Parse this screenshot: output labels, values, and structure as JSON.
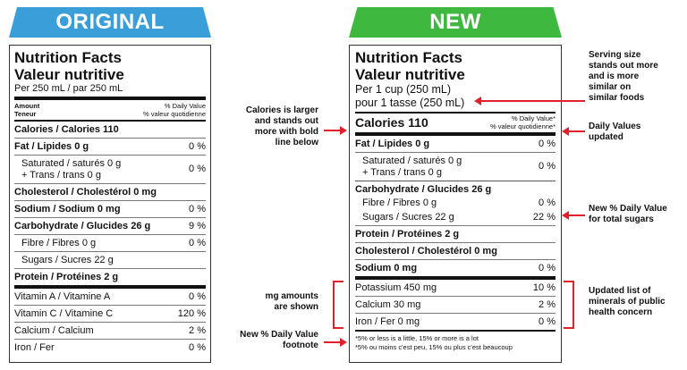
{
  "banners": {
    "original": "ORIGINAL",
    "new": "NEW"
  },
  "original": {
    "title1": "Nutrition Facts",
    "title2": "Valeur nutritive",
    "serving": "Per 250 mL  / par 250 mL",
    "hdr_left1": "Amount",
    "hdr_left2": "Teneur",
    "hdr_right1": "% Daily Value",
    "hdr_right2": "% valeur quotidienne",
    "rows": [
      {
        "label": "Calories / Calories 110",
        "dv": ""
      },
      {
        "label": "Fat / Lipides 0 g",
        "dv": "0 %"
      },
      {
        "label": "Saturated / saturés 0 g",
        "label2": "+ Trans / trans 0 g",
        "dv": "0 %"
      },
      {
        "label": "Cholesterol / Cholestérol 0 mg",
        "dv": ""
      },
      {
        "label": "Sodium / Sodium 0 mg",
        "dv": "0 %"
      },
      {
        "label": "Carbohydrate / Glucides 26 g",
        "dv": "9 %"
      },
      {
        "label": "Fibre / Fibres 0 g",
        "dv": "0 %"
      },
      {
        "label": "Sugars / Sucres 22 g",
        "dv": ""
      },
      {
        "label": "Protein / Protéines 2 g",
        "dv": ""
      },
      {
        "label": "Vitamin A / Vitamine A",
        "dv": "0 %"
      },
      {
        "label": "Vitamin C / Vitamine C",
        "dv": "120 %"
      },
      {
        "label": "Calcium / Calcium",
        "dv": "2 %"
      },
      {
        "label": "Iron / Fer",
        "dv": "0 %"
      }
    ]
  },
  "new": {
    "title1": "Nutrition Facts",
    "title2": "Valeur nutritive",
    "serving1": "Per 1 cup (250 mL)",
    "serving2": "pour 1 tasse (250 mL)",
    "calories": "Calories 110",
    "hdr_right1": "% Daily Value*",
    "hdr_right2": "% valeur quotidienne*",
    "rows": [
      {
        "label": "Fat / Lipides 0 g",
        "dv": "0 %"
      },
      {
        "label": "Saturated / saturés 0 g",
        "label2": "+ Trans / trans 0 g",
        "dv": "0 %"
      },
      {
        "label": "Carbohydrate / Glucides 26 g",
        "dv": ""
      },
      {
        "label": "Fibre / Fibres 0 g",
        "dv": "0 %"
      },
      {
        "label": "Sugars / Sucres 22 g",
        "dv": "22 %"
      },
      {
        "label": "Protein / Protéines 2 g",
        "dv": ""
      },
      {
        "label": "Cholesterol / Cholestérol 0 mg",
        "dv": ""
      },
      {
        "label": "Sodium 0 mg",
        "dv": "0 %"
      },
      {
        "label": "Potassium 450 mg",
        "dv": "10 %"
      },
      {
        "label": "Calcium 30 mg",
        "dv": "2 %"
      },
      {
        "label": "Iron / Fer 0 mg",
        "dv": "0 %"
      }
    ],
    "foot1": "*5% or less is a little, 15% or more is a lot",
    "foot2": "*5% ou moins c'est peu, 15% ou plus c'est beaucoup"
  },
  "annotations": {
    "serving": "Serving size\nstands out more\nand is more\nsimilar on\nsimilar foods",
    "calories": "Calories is larger\nand stands out\nmore with bold\nline below",
    "daily_values": "Daily Values\nupdated",
    "sugars": "New % Daily Value\nfor total sugars",
    "mg": "mg amounts\nare shown",
    "minerals": "Updated list of\nminerals of public\nhealth concern",
    "footnote": "New % Daily Value\nfootnote"
  },
  "colors": {
    "original_banner": "#3a9fd8",
    "new_banner": "#3fb83f",
    "arrow": "#e0202a"
  }
}
